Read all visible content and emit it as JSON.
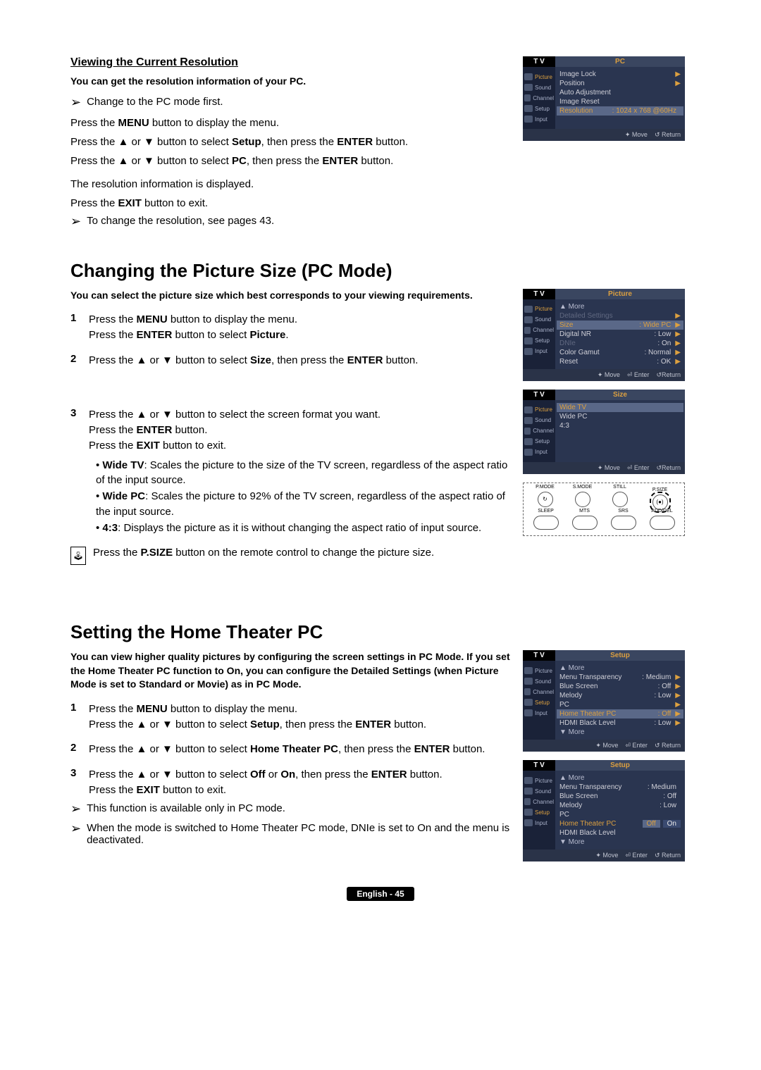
{
  "section1": {
    "title": "Viewing the Current Resolution",
    "intro": "You can get the resolution information of your PC.",
    "note1_prefix": "Change to the PC mode first.",
    "line1": "Press the MENU button to display the menu.",
    "line2": "Press the ▲ or ▼ button to select Setup, then press the ENTER button.",
    "line3": "Press the ▲ or ▼ button to select PC, then press the ENTER button.",
    "line4": "The resolution information is displayed.",
    "line5": "Press the EXIT button to exit.",
    "note2": "To change the resolution, see pages 43."
  },
  "osd_pc": {
    "header": "PC",
    "tv": "T V",
    "side": [
      "Picture",
      "Sound",
      "Channel",
      "Setup",
      "Input"
    ],
    "items": [
      {
        "lbl": "Image Lock",
        "arrow": true
      },
      {
        "lbl": "Position",
        "arrow": true
      },
      {
        "lbl": "Auto Adjustment"
      },
      {
        "lbl": "Image Reset"
      },
      {
        "lbl": "Resolution",
        "val": ": 1024 x 768 @60Hz",
        "highlight": true
      }
    ],
    "footer": [
      "✦ Move",
      "↺ Return"
    ]
  },
  "section2": {
    "title": "Changing the Picture Size (PC Mode)",
    "intro": "You can select the picture size which best corresponds to your viewing requirements.",
    "step1a": "Press the MENU button to display the menu.",
    "step1b": "Press the ENTER button to select Picture.",
    "step2": "Press the ▲ or ▼ button to select Size, then press the ENTER button.",
    "step3a": "Press the ▲ or ▼ button to select the screen format you want.",
    "step3b": "Press the ENTER button.",
    "step3c": "Press the EXIT button to exit.",
    "bullets": [
      "Wide TV: Scales the picture to the size of the TV screen, regardless of the aspect ratio of the input source.",
      "Wide PC: Scales the picture to 92% of the TV screen, regardless of the aspect ratio of the input source.",
      "4:3: Displays the picture as it is without changing the aspect ratio of input source."
    ],
    "remote_tip": "Press the P.SIZE button on the remote control to change the picture size."
  },
  "osd_picture": {
    "header": "Picture",
    "items": [
      {
        "lbl": "▲ More",
        "cls": "osd-more"
      },
      {
        "lbl": "Detailed Settings",
        "arrow": true,
        "dim": true
      },
      {
        "lbl": "Size",
        "val": ": Wide PC",
        "arrow": true,
        "highlight": true
      },
      {
        "lbl": "Digital NR",
        "val": ": Low",
        "arrow": true
      },
      {
        "lbl": "DNIe",
        "val": ": On",
        "arrow": true,
        "dim": true
      },
      {
        "lbl": "Color Gamut",
        "val": ": Normal",
        "arrow": true
      },
      {
        "lbl": "Reset",
        "val": ": OK",
        "arrow": true
      }
    ],
    "footer": [
      "✦ Move",
      "⏎ Enter",
      "↺Return"
    ]
  },
  "osd_size": {
    "header": "Size",
    "items": [
      {
        "lbl": "Wide TV",
        "highlight": true
      },
      {
        "lbl": "Wide PC"
      },
      {
        "lbl": "4:3"
      }
    ],
    "footer": [
      "✦ Move",
      "⏎ Enter",
      "↺Return"
    ]
  },
  "remote_buttons": {
    "row1": [
      "P.MODE",
      "S.MODE",
      "STILL",
      "P.SIZE"
    ],
    "row2": [
      "SLEEP",
      "MTS",
      "SRS",
      "ADD/DEL"
    ]
  },
  "section3": {
    "title": "Setting the Home Theater PC",
    "intro": "You can view higher quality pictures by configuring the screen settings in PC Mode. If you set the Home Theater PC function to On, you can configure the Detailed Settings (when Picture Mode is set to Standard or Movie) as in PC Mode.",
    "step1a": "Press the MENU button to display the menu.",
    "step1b": "Press the ▲ or ▼ button to select Setup, then press the ENTER button.",
    "step2": "Press the ▲ or ▼ button to select Home Theater PC, then press the ENTER button.",
    "step3a": "Press the ▲ or ▼ button to select Off or On, then press the ENTER button.",
    "step3b": "Press the EXIT button to exit.",
    "note1": "This function is available only in PC mode.",
    "note2": "When the mode is switched to Home Theater PC mode, DNIe is set to On and the menu is deactivated."
  },
  "osd_setup1": {
    "header": "Setup",
    "items": [
      {
        "lbl": "▲ More",
        "cls": "osd-more"
      },
      {
        "lbl": "Menu Transparency",
        "val": ": Medium",
        "arrow": true
      },
      {
        "lbl": "Blue Screen",
        "val": ": Off",
        "arrow": true
      },
      {
        "lbl": "Melody",
        "val": ": Low",
        "arrow": true
      },
      {
        "lbl": "PC",
        "arrow": true
      },
      {
        "lbl": "Home Theater PC",
        "val": ": Off",
        "arrow": true,
        "highlight": true
      },
      {
        "lbl": "HDMI Black Level",
        "val": ": Low",
        "arrow": true
      },
      {
        "lbl": "▼ More",
        "cls": "osd-more"
      }
    ],
    "footer": [
      "✦ Move",
      "⏎ Enter",
      "↺ Return"
    ]
  },
  "osd_setup2": {
    "header": "Setup",
    "items": [
      {
        "lbl": "▲ More",
        "cls": "osd-more"
      },
      {
        "lbl": "Menu Transparency",
        "val": ": Medium"
      },
      {
        "lbl": "Blue Screen",
        "val": ": Off"
      },
      {
        "lbl": "Melody",
        "val": ": Low"
      },
      {
        "lbl": "PC"
      },
      {
        "lbl": "Home Theater PC",
        "opts": [
          "Off",
          "On"
        ],
        "highlight_opts": true
      },
      {
        "lbl": "HDMI Black Level"
      },
      {
        "lbl": "▼ More",
        "cls": "osd-more"
      }
    ],
    "footer": [
      "✦ Move",
      "⏎ Enter",
      "↺ Return"
    ]
  },
  "page_footer": "English - 45",
  "colors": {
    "osd_bg": "#2a3550",
    "osd_side": "#1a2238",
    "osd_header": "#3a4660",
    "accent": "#dca040",
    "text_light": "#d0d0d8",
    "text_dim": "#606880",
    "highlight_bg": "#5a6888",
    "footer_bg": "#2a3348"
  }
}
